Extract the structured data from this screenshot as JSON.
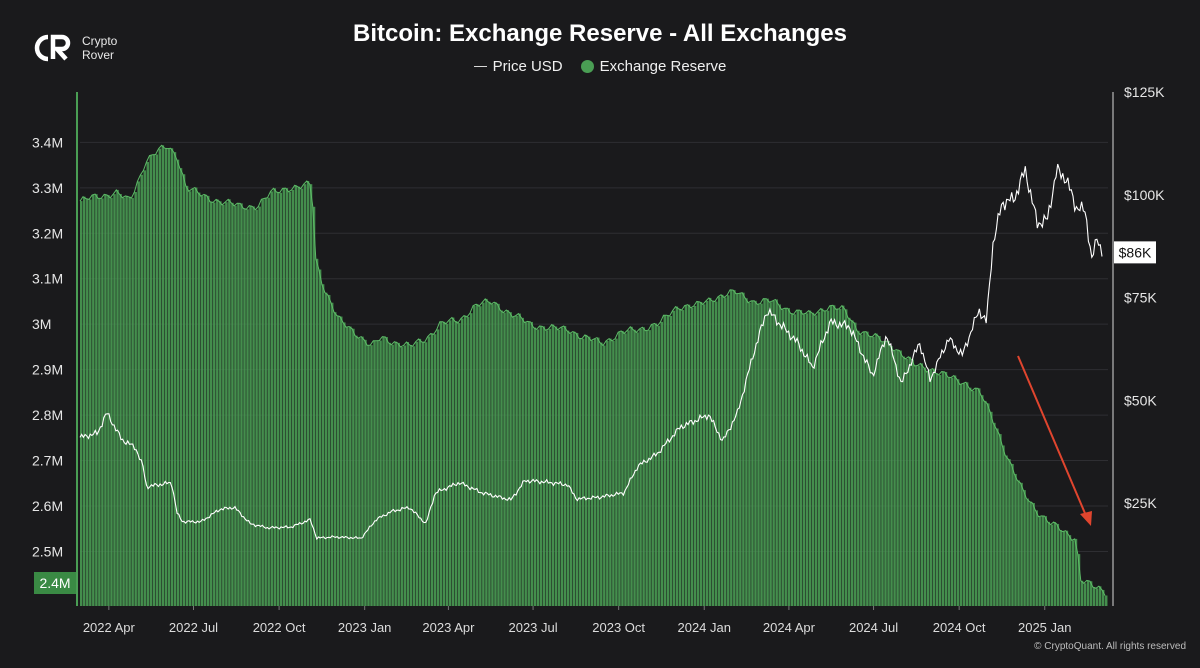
{
  "brand": {
    "line1": "Crypto",
    "line2": "Rover"
  },
  "copyright": "© CryptoQuant. All rights reserved",
  "colors": {
    "background": "#1a1a1c",
    "reserve": "#4a9e54",
    "reserve_dark": "#2f6b35",
    "price": "#ffffff",
    "arrow": "#e0452e",
    "grid": "#2e2e32"
  },
  "chart_data": {
    "type": "bar",
    "title": "Bitcoin: Exchange Reserve - All Exchanges",
    "legend": {
      "placement": "top-center",
      "entries": [
        "Price USD",
        "Exchange Reserve"
      ]
    },
    "grid": true,
    "x_tick_labels": [
      "2022 Apr",
      "2022 Jul",
      "2022 Oct",
      "2023 Jan",
      "2023 Apr",
      "2023 Jul",
      "2023 Oct",
      "2024 Jan",
      "2024 Apr",
      "2024 Jul",
      "2024 Oct",
      "2025 Jan"
    ],
    "x_range": [
      "2022-03-01",
      "2025-03-10"
    ],
    "y_left": {
      "ylim": [
        2.38,
        3.48
      ],
      "tick_values": [
        2.5,
        2.6,
        2.7,
        2.8,
        2.9,
        3.0,
        3.1,
        3.2,
        3.3,
        3.4
      ],
      "tick_labels": [
        "2.5M",
        "2.6M",
        "2.7M",
        "2.8M",
        "2.9M",
        "3M",
        "3.1M",
        "3.2M",
        "3.3M",
        "3.4M"
      ],
      "current_label": "2.4M",
      "current_value": 2.4
    },
    "y_right": {
      "ylim": [
        0,
        125000
      ],
      "tick_values": [
        25000,
        50000,
        75000,
        100000,
        125000
      ],
      "tick_labels": [
        "$25K",
        "$50K",
        "$75K",
        "$100K",
        "$125K"
      ],
      "current_label": "$86K",
      "current_value": 86000
    },
    "series": [
      {
        "name": "Exchange Reserve",
        "axis": "left",
        "style": "bars",
        "points": [
          [
            "2022-03-01",
            3.27
          ],
          [
            "2022-03-20",
            3.28
          ],
          [
            "2022-04-10",
            3.29
          ],
          [
            "2022-04-25",
            3.27
          ],
          [
            "2022-05-05",
            3.32
          ],
          [
            "2022-05-12",
            3.36
          ],
          [
            "2022-05-25",
            3.38
          ],
          [
            "2022-06-05",
            3.39
          ],
          [
            "2022-06-15",
            3.37
          ],
          [
            "2022-06-25",
            3.3
          ],
          [
            "2022-07-15",
            3.28
          ],
          [
            "2022-08-01",
            3.27
          ],
          [
            "2022-08-20",
            3.26
          ],
          [
            "2022-09-10",
            3.26
          ],
          [
            "2022-09-25",
            3.29
          ],
          [
            "2022-10-10",
            3.3
          ],
          [
            "2022-10-25",
            3.3
          ],
          [
            "2022-11-07",
            3.31
          ],
          [
            "2022-11-10",
            3.15
          ],
          [
            "2022-11-20",
            3.08
          ],
          [
            "2022-12-05",
            3.01
          ],
          [
            "2022-12-25",
            2.98
          ],
          [
            "2023-01-10",
            2.95
          ],
          [
            "2023-01-20",
            2.97
          ],
          [
            "2023-02-05",
            2.96
          ],
          [
            "2023-02-20",
            2.95
          ],
          [
            "2023-03-10",
            2.97
          ],
          [
            "2023-03-25",
            3.0
          ],
          [
            "2023-04-15",
            3.01
          ],
          [
            "2023-05-01",
            3.04
          ],
          [
            "2023-05-20",
            3.05
          ],
          [
            "2023-06-10",
            3.02
          ],
          [
            "2023-07-01",
            3.0
          ],
          [
            "2023-07-20",
            2.99
          ],
          [
            "2023-08-10",
            2.99
          ],
          [
            "2023-08-25",
            2.97
          ],
          [
            "2023-09-15",
            2.96
          ],
          [
            "2023-10-05",
            2.98
          ],
          [
            "2023-10-25",
            2.99
          ],
          [
            "2023-11-15",
            3.0
          ],
          [
            "2023-12-05",
            3.04
          ],
          [
            "2023-12-25",
            3.04
          ],
          [
            "2024-01-15",
            3.06
          ],
          [
            "2024-02-05",
            3.07
          ],
          [
            "2024-02-25",
            3.05
          ],
          [
            "2024-03-15",
            3.05
          ],
          [
            "2024-04-05",
            3.03
          ],
          [
            "2024-04-25",
            3.02
          ],
          [
            "2024-05-15",
            3.04
          ],
          [
            "2024-06-01",
            3.03
          ],
          [
            "2024-06-15",
            2.99
          ],
          [
            "2024-07-05",
            2.97
          ],
          [
            "2024-07-25",
            2.95
          ],
          [
            "2024-08-15",
            2.91
          ],
          [
            "2024-09-05",
            2.9
          ],
          [
            "2024-09-25",
            2.88
          ],
          [
            "2024-10-10",
            2.87
          ],
          [
            "2024-10-25",
            2.85
          ],
          [
            "2024-11-10",
            2.78
          ],
          [
            "2024-11-25",
            2.7
          ],
          [
            "2024-12-10",
            2.63
          ],
          [
            "2024-12-25",
            2.59
          ],
          [
            "2025-01-10",
            2.56
          ],
          [
            "2025-01-25",
            2.54
          ],
          [
            "2025-02-05",
            2.53
          ],
          [
            "2025-02-10",
            2.44
          ],
          [
            "2025-02-25",
            2.42
          ],
          [
            "2025-03-10",
            2.41
          ]
        ]
      },
      {
        "name": "Price USD",
        "axis": "right",
        "style": "line",
        "points": [
          [
            "2022-03-01",
            41000
          ],
          [
            "2022-03-20",
            42000
          ],
          [
            "2022-03-30",
            47000
          ],
          [
            "2022-04-15",
            40500
          ],
          [
            "2022-04-30",
            38500
          ],
          [
            "2022-05-08",
            34000
          ],
          [
            "2022-05-12",
            29000
          ],
          [
            "2022-05-25",
            29500
          ],
          [
            "2022-06-08",
            30000
          ],
          [
            "2022-06-14",
            22500
          ],
          [
            "2022-06-20",
            20500
          ],
          [
            "2022-07-10",
            20500
          ],
          [
            "2022-07-30",
            23500
          ],
          [
            "2022-08-15",
            24000
          ],
          [
            "2022-09-01",
            20000
          ],
          [
            "2022-09-20",
            19000
          ],
          [
            "2022-10-15",
            19200
          ],
          [
            "2022-11-05",
            21000
          ],
          [
            "2022-11-12",
            16500
          ],
          [
            "2022-12-01",
            16800
          ],
          [
            "2022-12-30",
            16500
          ],
          [
            "2023-01-15",
            21000
          ],
          [
            "2023-02-01",
            23000
          ],
          [
            "2023-02-20",
            24000
          ],
          [
            "2023-03-10",
            20000
          ],
          [
            "2023-03-20",
            27500
          ],
          [
            "2023-04-15",
            30000
          ],
          [
            "2023-05-10",
            27500
          ],
          [
            "2023-06-10",
            25800
          ],
          [
            "2023-06-25",
            30500
          ],
          [
            "2023-07-15",
            30200
          ],
          [
            "2023-08-10",
            29500
          ],
          [
            "2023-08-20",
            26000
          ],
          [
            "2023-09-15",
            26500
          ],
          [
            "2023-10-10",
            27500
          ],
          [
            "2023-10-25",
            34000
          ],
          [
            "2023-11-15",
            37000
          ],
          [
            "2023-12-10",
            43500
          ],
          [
            "2024-01-10",
            46500
          ],
          [
            "2024-01-25",
            40000
          ],
          [
            "2024-02-10",
            47000
          ],
          [
            "2024-02-28",
            62000
          ],
          [
            "2024-03-13",
            72000
          ],
          [
            "2024-03-25",
            69000
          ],
          [
            "2024-04-15",
            64000
          ],
          [
            "2024-05-01",
            58000
          ],
          [
            "2024-05-20",
            69000
          ],
          [
            "2024-06-10",
            68000
          ],
          [
            "2024-07-05",
            56000
          ],
          [
            "2024-07-20",
            66000
          ],
          [
            "2024-08-05",
            54000
          ],
          [
            "2024-08-25",
            64000
          ],
          [
            "2024-09-05",
            55000
          ],
          [
            "2024-09-25",
            65000
          ],
          [
            "2024-10-10",
            61000
          ],
          [
            "2024-10-28",
            72000
          ],
          [
            "2024-11-05",
            69000
          ],
          [
            "2024-11-12",
            88000
          ],
          [
            "2024-11-22",
            98000
          ],
          [
            "2024-12-05",
            99000
          ],
          [
            "2024-12-17",
            106000
          ],
          [
            "2024-12-30",
            93000
          ],
          [
            "2025-01-10",
            94000
          ],
          [
            "2025-01-20",
            106000
          ],
          [
            "2025-01-30",
            104000
          ],
          [
            "2025-02-10",
            97000
          ],
          [
            "2025-02-20",
            96000
          ],
          [
            "2025-02-27",
            84000
          ],
          [
            "2025-03-05",
            90000
          ],
          [
            "2025-03-10",
            86000
          ]
        ]
      }
    ]
  }
}
